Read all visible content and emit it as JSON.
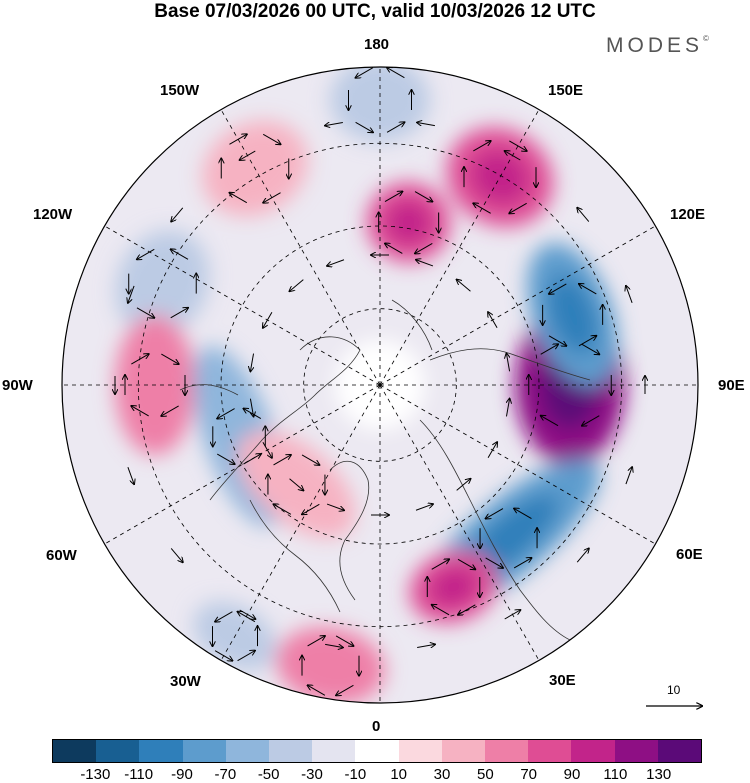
{
  "title": "Base 07/03/2026 00 UTC, valid 10/03/2026 12 UTC",
  "brand": "MODES",
  "brand_mark": "©",
  "map": {
    "projection": "north polar stereographic",
    "longitude_labels": {
      "top": "180",
      "top_right": "150E",
      "right_upper": "120E",
      "right": "90E",
      "right_lower": "60E",
      "bottom_right": "30E",
      "bottom": "0",
      "bottom_left": "30W",
      "left_lower": "60W",
      "left": "90W",
      "left_upper": "120W",
      "top_left": "150W"
    }
  },
  "vector_reference": {
    "value": "10"
  },
  "colorbar": {
    "colors": [
      "#0d3a5e",
      "#185f92",
      "#2f7fba",
      "#5d9ccd",
      "#8fb6dc",
      "#bccbe4",
      "#e4e4f0",
      "#ffffff",
      "#fbd9df",
      "#f6b2c2",
      "#ee7fa7",
      "#df4d94",
      "#c2248a",
      "#8e0f84",
      "#5b0a78"
    ],
    "tick_labels": [
      "-130",
      "-110",
      "-90",
      "-70",
      "-50",
      "-30",
      "-10",
      "10",
      "30",
      "50",
      "70",
      "90",
      "110",
      "130"
    ]
  },
  "anomaly_centers": [
    {
      "sign": "positive",
      "intensity": 120,
      "region": "90E"
    },
    {
      "sign": "negative",
      "intensity": -90,
      "region": "110E"
    },
    {
      "sign": "negative",
      "intensity": -80,
      "region": "40E"
    },
    {
      "sign": "positive",
      "intensity": 70,
      "region": "150E"
    },
    {
      "sign": "positive",
      "intensity": 80,
      "region": "170E"
    },
    {
      "sign": "negative",
      "intensity": -50,
      "region": "180"
    },
    {
      "sign": "positive",
      "intensity": 40,
      "region": "150W"
    },
    {
      "sign": "negative",
      "intensity": -50,
      "region": "115W"
    },
    {
      "sign": "positive",
      "intensity": 60,
      "region": "90W"
    },
    {
      "sign": "negative",
      "intensity": -60,
      "region": "70W"
    },
    {
      "sign": "positive",
      "intensity": 40,
      "region": "40W"
    },
    {
      "sign": "negative",
      "intensity": -40,
      "region": "30W"
    },
    {
      "sign": "positive",
      "intensity": 70,
      "region": "20E"
    },
    {
      "sign": "positive",
      "intensity": 60,
      "region": "10W"
    }
  ]
}
